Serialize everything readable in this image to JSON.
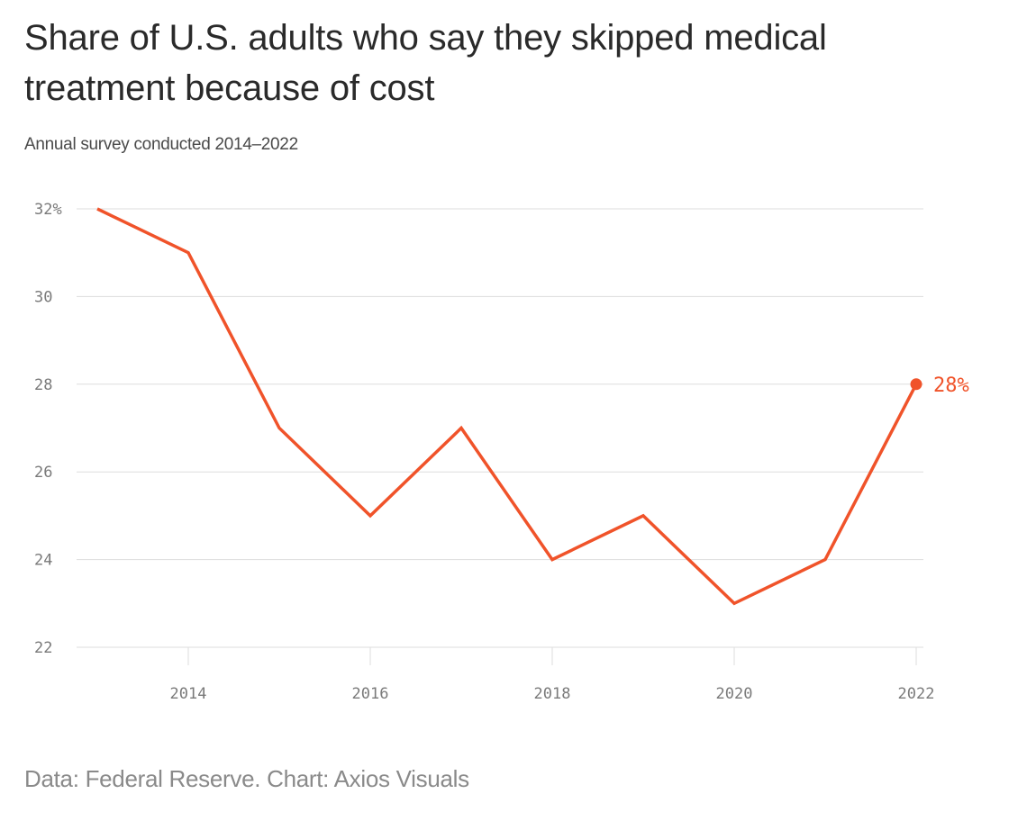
{
  "title": "Share of U.S. adults who say they skipped medical treatment because of cost",
  "subtitle": "Annual survey conducted 2014–2022",
  "source": "Data: Federal Reserve. Chart: Axios Visuals",
  "colors": {
    "line": "#f0532a",
    "grid": "#dddddd",
    "axis_text": "#7a7a7a"
  },
  "chart_data": {
    "type": "line",
    "title": "Share of U.S. adults who say they skipped medical treatment because of cost",
    "subtitle": "Annual survey conducted 2014–2022",
    "xlabel": "",
    "ylabel": "",
    "x": [
      2013,
      2014,
      2015,
      2016,
      2017,
      2018,
      2019,
      2020,
      2021,
      2022
    ],
    "series": [
      {
        "values": [
          32,
          31,
          27,
          25,
          27,
          24,
          25,
          23,
          24,
          28
        ]
      }
    ],
    "xlim": [
      2013,
      2022
    ],
    "ylim": [
      22,
      32
    ],
    "x_ticks": [
      2014,
      2016,
      2018,
      2020,
      2022
    ],
    "x_tick_labels": [
      "2014",
      "2016",
      "2018",
      "2020",
      "2022"
    ],
    "y_ticks": [
      22,
      24,
      26,
      28,
      30,
      32
    ],
    "y_tick_labels": [
      "22",
      "24",
      "26",
      "28",
      "30",
      "32%"
    ],
    "grid": "horizontal",
    "end_label": "28%"
  }
}
